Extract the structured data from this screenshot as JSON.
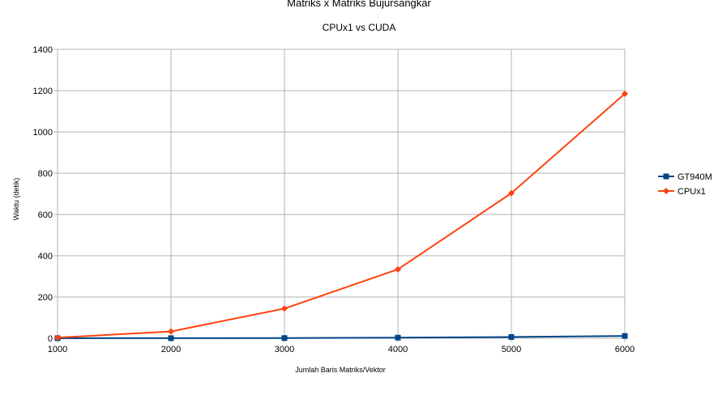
{
  "chart_data": {
    "type": "line",
    "title": "Matriks x Matriks Bujursangkar",
    "subtitle": "CPUx1 vs CUDA",
    "xlabel": "Jumlah Baris Matriks/Vektor",
    "ylabel": "Waktu (detik)",
    "x": [
      1000,
      2000,
      3000,
      4000,
      5000,
      6000
    ],
    "x_ticks": [
      "1000",
      "2000",
      "3000",
      "4000",
      "5000",
      "6000"
    ],
    "ylim": [
      0,
      1400
    ],
    "y_ticks": [
      "0",
      "200",
      "400",
      "600",
      "800",
      "1000",
      "1200",
      "1400"
    ],
    "grid": true,
    "legend_position": "right",
    "series": [
      {
        "name": "GT940M",
        "color": "#004586",
        "marker": "square",
        "values": [
          0.2,
          0.5,
          1,
          3,
          6,
          11
        ]
      },
      {
        "name": "CPUx1",
        "color": "#ff420e",
        "marker": "diamond",
        "values": [
          3,
          33,
          144,
          334,
          703,
          1185
        ]
      }
    ]
  }
}
